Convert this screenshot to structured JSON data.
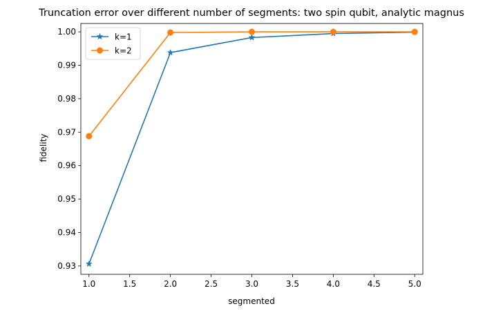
{
  "chart_data": {
    "type": "line",
    "title": "Truncation error over different number of segments: two spin qubit, analytic magnus",
    "xlabel": "segmented",
    "ylabel": "fidelity",
    "x": [
      1.0,
      2.0,
      3.0,
      4.0,
      5.0
    ],
    "xlim": [
      0.9,
      5.1
    ],
    "ylim": [
      0.9275,
      1.0025
    ],
    "xticks": [
      1.0,
      1.5,
      2.0,
      2.5,
      3.0,
      3.5,
      4.0,
      4.5,
      5.0
    ],
    "xtick_labels": [
      "1.0",
      "1.5",
      "2.0",
      "2.5",
      "3.0",
      "3.5",
      "4.0",
      "4.5",
      "5.0"
    ],
    "yticks": [
      0.93,
      0.94,
      0.95,
      0.96,
      0.97,
      0.98,
      0.99,
      1.0
    ],
    "ytick_labels": [
      "0.93",
      "0.94",
      "0.95",
      "0.96",
      "0.97",
      "0.98",
      "0.99",
      "1.00"
    ],
    "grid": false,
    "legend": "upper-left",
    "series": [
      {
        "name": "k=1",
        "values": [
          0.9306,
          0.9938,
          0.9983,
          0.9995,
          0.9999
        ],
        "color": "#1f77b4",
        "marker": "star"
      },
      {
        "name": "k=2",
        "values": [
          0.9688,
          0.9998,
          1.0,
          1.0,
          1.0
        ],
        "color": "#ff7f0e",
        "marker": "circle"
      }
    ]
  }
}
